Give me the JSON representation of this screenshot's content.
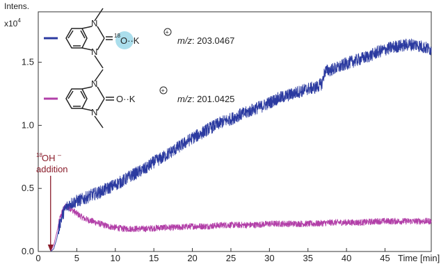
{
  "chart_data": {
    "type": "line",
    "ylabel": "Intens.",
    "y_exponent_base": "x10",
    "y_exponent_power": "4",
    "xlabel": "Time [min]",
    "xlim": [
      0,
      51
    ],
    "ylim": [
      0,
      1.9
    ],
    "x_ticks": [
      0,
      5,
      10,
      15,
      20,
      25,
      30,
      35,
      40,
      45
    ],
    "y_ticks": [
      "0.0",
      "0.5",
      "1.0",
      "1.5"
    ],
    "grid": false,
    "series": [
      {
        "color": "#2b3aa0",
        "legend_text": "m/z: 203.0467",
        "legend_prefix": "m/z",
        "legend_value": ": 203.0467",
        "molecule_group": "O··K",
        "isotope": "18",
        "cation": "K",
        "charge": "+",
        "points": [
          [
            1.6,
            0.0
          ],
          [
            2.0,
            0.02
          ],
          [
            2.4,
            0.1
          ],
          [
            2.8,
            0.22
          ],
          [
            3.2,
            0.3
          ],
          [
            3.6,
            0.35
          ],
          [
            4.2,
            0.38
          ],
          [
            5,
            0.4
          ],
          [
            6,
            0.42
          ],
          [
            7,
            0.45
          ],
          [
            8,
            0.47
          ],
          [
            9,
            0.5
          ],
          [
            10,
            0.53
          ],
          [
            11,
            0.56
          ],
          [
            12,
            0.6
          ],
          [
            13,
            0.63
          ],
          [
            14,
            0.66
          ],
          [
            15,
            0.71
          ],
          [
            16,
            0.74
          ],
          [
            17,
            0.78
          ],
          [
            18,
            0.82
          ],
          [
            19,
            0.86
          ],
          [
            20,
            0.9
          ],
          [
            21,
            0.93
          ],
          [
            22,
            0.97
          ],
          [
            23,
            1.0
          ],
          [
            24,
            1.03
          ],
          [
            25,
            1.05
          ],
          [
            26,
            1.08
          ],
          [
            27,
            1.1
          ],
          [
            28,
            1.13
          ],
          [
            29,
            1.15
          ],
          [
            30,
            1.18
          ],
          [
            31,
            1.21
          ],
          [
            32,
            1.23
          ],
          [
            33,
            1.25
          ],
          [
            34,
            1.27
          ],
          [
            35,
            1.29
          ],
          [
            36,
            1.3
          ],
          [
            36.8,
            1.33
          ],
          [
            37.2,
            1.43
          ],
          [
            38,
            1.44
          ],
          [
            39,
            1.46
          ],
          [
            40,
            1.49
          ],
          [
            41,
            1.51
          ],
          [
            42,
            1.53
          ],
          [
            43,
            1.55
          ],
          [
            44,
            1.58
          ],
          [
            45,
            1.6
          ],
          [
            46,
            1.62
          ],
          [
            47,
            1.63
          ],
          [
            48,
            1.64
          ],
          [
            49,
            1.64
          ],
          [
            50,
            1.62
          ],
          [
            51,
            1.6
          ]
        ],
        "noise": 0.05
      },
      {
        "color": "#b23fa8",
        "legend_text": "m/z: 201.0425",
        "legend_prefix": "m/z",
        "legend_value": ": 201.0425",
        "molecule_group": "O··K",
        "cation": "K",
        "charge": "+",
        "points": [
          [
            1.6,
            0.0
          ],
          [
            2.0,
            0.05
          ],
          [
            2.4,
            0.15
          ],
          [
            2.8,
            0.26
          ],
          [
            3.2,
            0.33
          ],
          [
            3.6,
            0.36
          ],
          [
            4.0,
            0.35
          ],
          [
            5,
            0.3
          ],
          [
            6,
            0.26
          ],
          [
            7,
            0.24
          ],
          [
            8,
            0.22
          ],
          [
            9,
            0.2
          ],
          [
            10,
            0.19
          ],
          [
            11,
            0.18
          ],
          [
            12,
            0.18
          ],
          [
            14,
            0.18
          ],
          [
            16,
            0.19
          ],
          [
            18,
            0.19
          ],
          [
            20,
            0.2
          ],
          [
            22,
            0.2
          ],
          [
            24,
            0.21
          ],
          [
            26,
            0.21
          ],
          [
            28,
            0.21
          ],
          [
            30,
            0.22
          ],
          [
            32,
            0.22
          ],
          [
            34,
            0.22
          ],
          [
            36,
            0.22
          ],
          [
            38,
            0.23
          ],
          [
            40,
            0.23
          ],
          [
            42,
            0.23
          ],
          [
            44,
            0.24
          ],
          [
            46,
            0.24
          ],
          [
            48,
            0.24
          ],
          [
            50,
            0.24
          ],
          [
            51,
            0.24
          ]
        ],
        "noise": 0.025
      }
    ],
    "annotation": {
      "isotope": "18",
      "text_main": "OH",
      "superscript_charge": "–",
      "text_line2": "addition",
      "color": "#8a1c2a",
      "arrow_target_x": 1.6,
      "arrow_target_y": 0.0
    }
  }
}
